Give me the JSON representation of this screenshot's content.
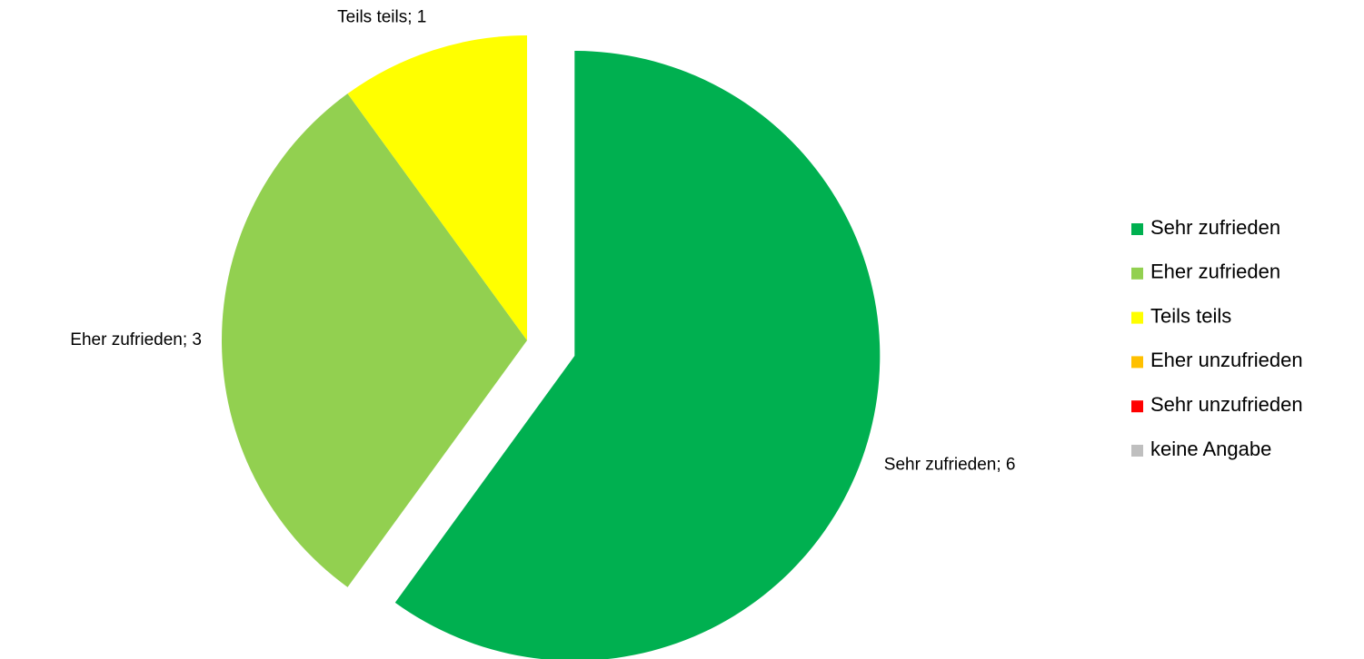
{
  "chart_data": {
    "type": "pie",
    "categories": [
      "Sehr zufrieden",
      "Eher zufrieden",
      "Teils teils",
      "Eher unzufrieden",
      "Sehr unzufrieden",
      "keine Angabe"
    ],
    "values": [
      6,
      3,
      1,
      0,
      0,
      0
    ],
    "value_labels": [
      "Sehr zufrieden; 6",
      "Eher zufrieden; 3",
      "Teils teils; 1",
      null,
      null,
      null
    ],
    "colors": [
      "#00b050",
      "#92d050",
      "#ffff00",
      "#ffc000",
      "#ff0000",
      "#bfbfbf"
    ],
    "exploded": [
      0
    ],
    "legend": "right"
  }
}
